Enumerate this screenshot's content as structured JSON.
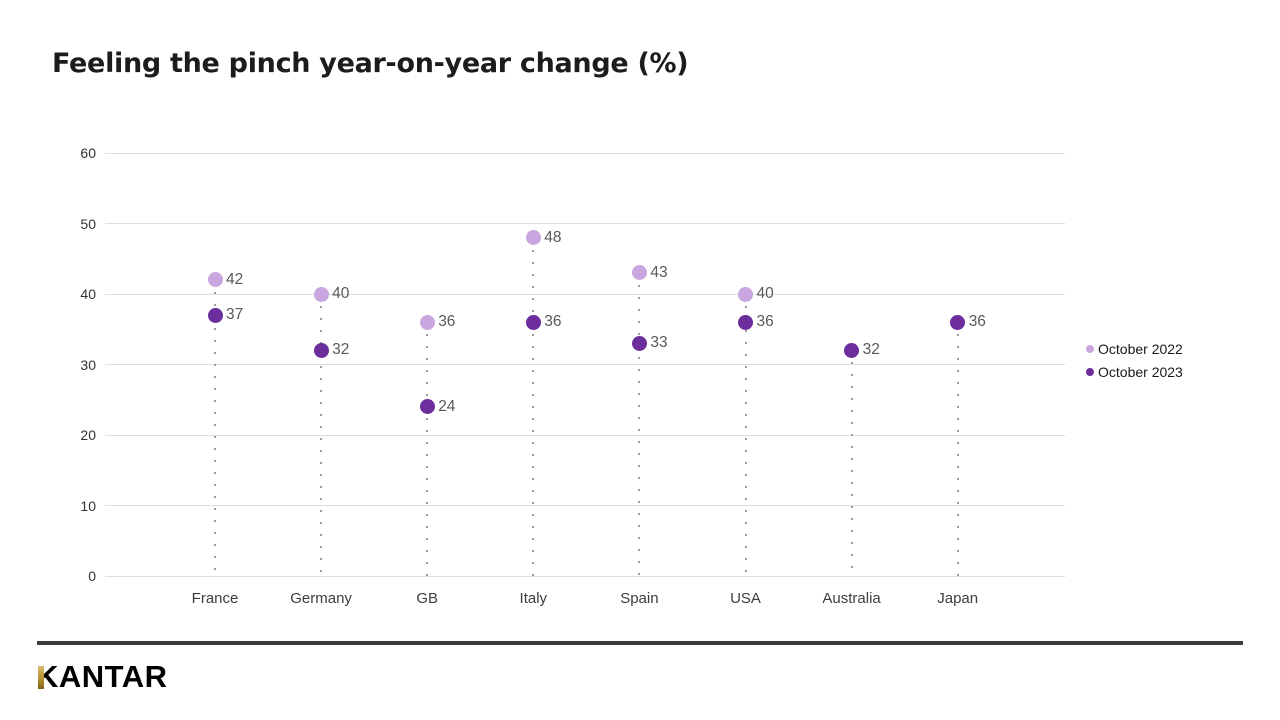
{
  "title": "Feeling the pinch year-on-year change (%)",
  "chart_data": {
    "type": "scatter",
    "title": "Feeling the pinch year-on-year change (%)",
    "categories": [
      "France",
      "Germany",
      "GB",
      "Italy",
      "Spain",
      "USA",
      "Australia",
      "Japan"
    ],
    "series": [
      {
        "name": "October 2022",
        "color": "#c9a6df",
        "values": [
          42,
          40,
          36,
          48,
          43,
          40,
          null,
          null
        ]
      },
      {
        "name": "October 2023",
        "color": "#6c2e9c",
        "values": [
          37,
          32,
          24,
          36,
          33,
          36,
          32,
          36
        ]
      }
    ],
    "xlabel": "",
    "ylabel": "",
    "ylim": [
      0,
      60
    ],
    "yticks": [
      0,
      10,
      20,
      30,
      40,
      50,
      60
    ],
    "grid": "horizontal",
    "legend_position": "right",
    "marker_style": "filled circle with dotted vertical stem to baseline and value label right of marker"
  },
  "legend": {
    "items": [
      {
        "label": "October 2022",
        "color": "#c9a6df"
      },
      {
        "label": "October 2023",
        "color": "#6c2e9c"
      }
    ]
  },
  "footer": {
    "logo_text": "KANTAR",
    "logo_accent_color": "#b8922f",
    "divider_color": "#3b3b3b"
  }
}
